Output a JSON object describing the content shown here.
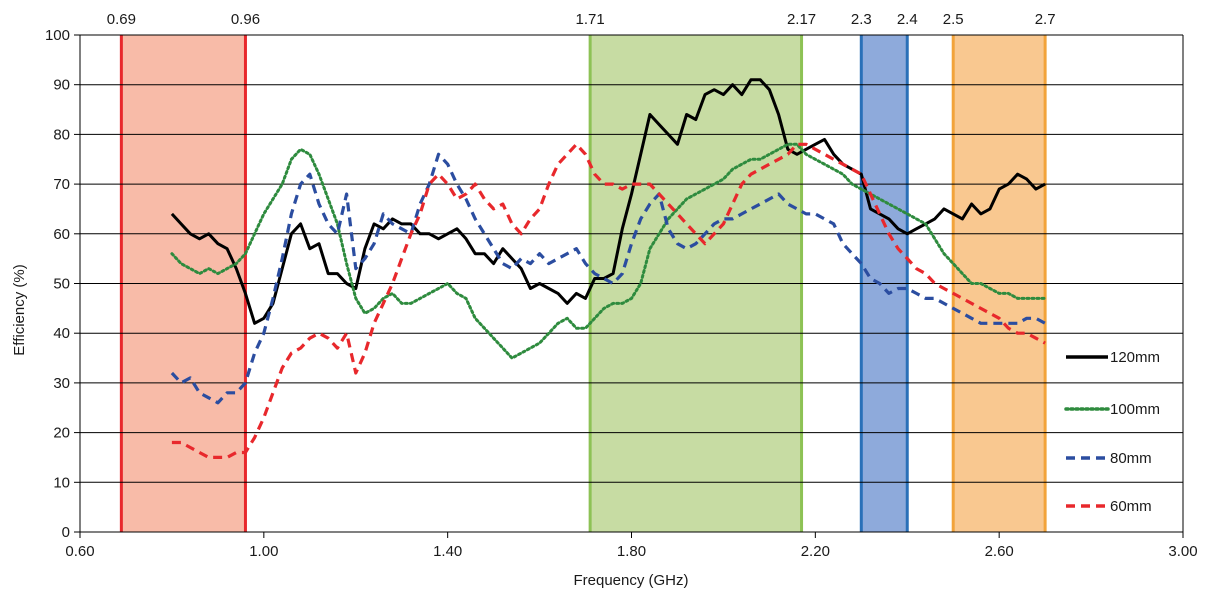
{
  "chart_data": {
    "type": "line",
    "xlabel": "Frequency (GHz)",
    "ylabel": "Efficiency  (%)",
    "xlim": [
      0.6,
      3.0
    ],
    "ylim": [
      0,
      100
    ],
    "x_ticks": [
      "0.60",
      "1.00",
      "1.40",
      "1.80",
      "2.20",
      "2.60",
      "3.00"
    ],
    "y_ticks": [
      "0",
      "10",
      "20",
      "30",
      "40",
      "50",
      "60",
      "70",
      "80",
      "90",
      "100"
    ],
    "grid": "horizontal",
    "legend": "right",
    "bands": [
      {
        "from": 0.69,
        "to": 0.96,
        "from_label": "0.69",
        "to_label": "0.96",
        "fill": "#f8bba8",
        "edge": "#e8282c"
      },
      {
        "from": 1.71,
        "to": 2.17,
        "from_label": "1.71",
        "to_label": "2.17",
        "fill": "#c7dca3",
        "edge": "#8dc255"
      },
      {
        "from": 2.3,
        "to": 2.4,
        "from_label": "2.3",
        "to_label": "2.4",
        "fill": "#8eaadb",
        "edge": "#2a70b8"
      },
      {
        "from": 2.5,
        "to": 2.7,
        "from_label": "2.5",
        "to_label": "2.7",
        "fill": "#f9c890",
        "edge": "#f2a33a"
      }
    ],
    "series": [
      {
        "name": "120mm",
        "color": "#000000",
        "style": "solid",
        "x": [
          0.8,
          0.82,
          0.84,
          0.86,
          0.88,
          0.9,
          0.92,
          0.94,
          0.96,
          0.98,
          1.0,
          1.02,
          1.04,
          1.06,
          1.08,
          1.1,
          1.12,
          1.14,
          1.16,
          1.18,
          1.2,
          1.22,
          1.24,
          1.26,
          1.28,
          1.3,
          1.32,
          1.34,
          1.36,
          1.38,
          1.4,
          1.42,
          1.44,
          1.46,
          1.48,
          1.5,
          1.52,
          1.54,
          1.56,
          1.58,
          1.6,
          1.62,
          1.64,
          1.66,
          1.68,
          1.7,
          1.72,
          1.74,
          1.76,
          1.78,
          1.8,
          1.82,
          1.84,
          1.86,
          1.88,
          1.9,
          1.92,
          1.94,
          1.96,
          1.98,
          2.0,
          2.02,
          2.04,
          2.06,
          2.08,
          2.1,
          2.12,
          2.14,
          2.16,
          2.18,
          2.2,
          2.22,
          2.24,
          2.26,
          2.28,
          2.3,
          2.32,
          2.34,
          2.36,
          2.38,
          2.4,
          2.42,
          2.44,
          2.46,
          2.48,
          2.5,
          2.52,
          2.54,
          2.56,
          2.58,
          2.6,
          2.62,
          2.64,
          2.66,
          2.68,
          2.7
        ],
        "y": [
          64,
          62,
          60,
          59,
          60,
          58,
          57,
          53,
          48,
          42,
          43,
          46,
          53,
          60,
          62,
          57,
          58,
          52,
          52,
          50,
          49,
          57,
          62,
          61,
          63,
          62,
          62,
          60,
          60,
          59,
          60,
          61,
          59,
          56,
          56,
          54,
          57,
          55,
          53,
          49,
          50,
          49,
          48,
          46,
          48,
          47,
          51,
          51,
          52,
          61,
          68,
          76,
          84,
          82,
          80,
          78,
          84,
          83,
          88,
          89,
          88,
          90,
          88,
          91,
          91,
          89,
          84,
          77,
          76,
          77,
          78,
          79,
          76,
          74,
          73,
          72,
          65,
          64,
          63,
          61,
          60,
          61,
          62,
          63,
          65,
          64,
          63,
          66,
          64,
          65,
          69,
          70,
          72,
          71,
          69,
          70
        ]
      },
      {
        "name": "100mm",
        "color": "#2e8b3e",
        "style": "dotted",
        "x": [
          0.8,
          0.82,
          0.84,
          0.86,
          0.88,
          0.9,
          0.92,
          0.94,
          0.96,
          0.98,
          1.0,
          1.02,
          1.04,
          1.06,
          1.08,
          1.1,
          1.12,
          1.14,
          1.16,
          1.18,
          1.2,
          1.22,
          1.24,
          1.26,
          1.28,
          1.3,
          1.32,
          1.34,
          1.36,
          1.38,
          1.4,
          1.42,
          1.44,
          1.46,
          1.48,
          1.5,
          1.52,
          1.54,
          1.56,
          1.58,
          1.6,
          1.62,
          1.64,
          1.66,
          1.68,
          1.7,
          1.72,
          1.74,
          1.76,
          1.78,
          1.8,
          1.82,
          1.84,
          1.86,
          1.88,
          1.9,
          1.92,
          1.94,
          1.96,
          1.98,
          2.0,
          2.02,
          2.04,
          2.06,
          2.08,
          2.1,
          2.12,
          2.14,
          2.16,
          2.18,
          2.2,
          2.22,
          2.24,
          2.26,
          2.28,
          2.3,
          2.32,
          2.34,
          2.36,
          2.38,
          2.4,
          2.42,
          2.44,
          2.46,
          2.48,
          2.5,
          2.52,
          2.54,
          2.56,
          2.58,
          2.6,
          2.62,
          2.64,
          2.66,
          2.68,
          2.7
        ],
        "y": [
          56,
          54,
          53,
          52,
          53,
          52,
          53,
          54,
          56,
          60,
          64,
          67,
          70,
          75,
          77,
          76,
          72,
          67,
          62,
          54,
          47,
          44,
          45,
          47,
          48,
          46,
          46,
          47,
          48,
          49,
          50,
          48,
          47,
          43,
          41,
          39,
          37,
          35,
          36,
          37,
          38,
          40,
          42,
          43,
          41,
          41,
          43,
          45,
          46,
          46,
          47,
          50,
          57,
          60,
          63,
          65,
          67,
          68,
          69,
          70,
          71,
          73,
          74,
          75,
          75,
          76,
          77,
          78,
          78,
          76,
          75,
          74,
          73,
          72,
          70,
          69,
          68,
          67,
          66,
          65,
          64,
          63,
          62,
          59,
          56,
          54,
          52,
          50,
          50,
          49,
          48,
          48,
          47,
          47,
          47,
          47
        ]
      },
      {
        "name": "80mm",
        "color": "#2b4da0",
        "style": "dashed",
        "x": [
          0.8,
          0.82,
          0.84,
          0.86,
          0.88,
          0.9,
          0.92,
          0.94,
          0.96,
          0.98,
          1.0,
          1.02,
          1.04,
          1.06,
          1.08,
          1.1,
          1.12,
          1.14,
          1.16,
          1.18,
          1.2,
          1.22,
          1.24,
          1.26,
          1.28,
          1.3,
          1.32,
          1.34,
          1.36,
          1.38,
          1.4,
          1.42,
          1.44,
          1.46,
          1.48,
          1.5,
          1.52,
          1.54,
          1.56,
          1.58,
          1.6,
          1.62,
          1.64,
          1.66,
          1.68,
          1.7,
          1.72,
          1.74,
          1.76,
          1.78,
          1.8,
          1.82,
          1.84,
          1.86,
          1.88,
          1.9,
          1.92,
          1.94,
          1.96,
          1.98,
          2.0,
          2.02,
          2.04,
          2.06,
          2.08,
          2.1,
          2.12,
          2.14,
          2.16,
          2.18,
          2.2,
          2.22,
          2.24,
          2.26,
          2.28,
          2.3,
          2.32,
          2.34,
          2.36,
          2.38,
          2.4,
          2.42,
          2.44,
          2.46,
          2.48,
          2.5,
          2.52,
          2.54,
          2.56,
          2.58,
          2.6,
          2.62,
          2.64,
          2.66,
          2.68,
          2.7
        ],
        "y": [
          32,
          30,
          31,
          28,
          27,
          26,
          28,
          28,
          30,
          36,
          40,
          47,
          55,
          64,
          70,
          72,
          66,
          62,
          60,
          68,
          53,
          55,
          58,
          64,
          62,
          61,
          60,
          66,
          70,
          76,
          74,
          70,
          67,
          63,
          60,
          57,
          54,
          53,
          55,
          54,
          56,
          54,
          55,
          56,
          57,
          54,
          52,
          51,
          50,
          52,
          58,
          63,
          66,
          68,
          61,
          58,
          57,
          58,
          60,
          62,
          63,
          63,
          64,
          65,
          66,
          67,
          68,
          66,
          65,
          64,
          64,
          63,
          62,
          58,
          56,
          54,
          51,
          50,
          48,
          49,
          49,
          48,
          47,
          47,
          46,
          45,
          44,
          43,
          42,
          42,
          42,
          42,
          42,
          43,
          43,
          42
        ]
      },
      {
        "name": "60mm",
        "color": "#e8282c",
        "style": "dashed",
        "x": [
          0.8,
          0.82,
          0.84,
          0.86,
          0.88,
          0.9,
          0.92,
          0.94,
          0.96,
          0.98,
          1.0,
          1.02,
          1.04,
          1.06,
          1.08,
          1.1,
          1.12,
          1.14,
          1.16,
          1.18,
          1.2,
          1.22,
          1.24,
          1.26,
          1.28,
          1.3,
          1.32,
          1.34,
          1.36,
          1.38,
          1.4,
          1.42,
          1.44,
          1.46,
          1.48,
          1.5,
          1.52,
          1.54,
          1.56,
          1.58,
          1.6,
          1.62,
          1.64,
          1.66,
          1.68,
          1.7,
          1.72,
          1.74,
          1.76,
          1.78,
          1.8,
          1.82,
          1.84,
          1.86,
          1.88,
          1.9,
          1.92,
          1.94,
          1.96,
          1.98,
          2.0,
          2.02,
          2.04,
          2.06,
          2.08,
          2.1,
          2.12,
          2.14,
          2.16,
          2.18,
          2.2,
          2.22,
          2.24,
          2.26,
          2.28,
          2.3,
          2.32,
          2.34,
          2.36,
          2.38,
          2.4,
          2.42,
          2.44,
          2.46,
          2.48,
          2.5,
          2.52,
          2.54,
          2.56,
          2.58,
          2.6,
          2.62,
          2.64,
          2.66,
          2.68,
          2.7
        ],
        "y": [
          18,
          18,
          17,
          16,
          15,
          15,
          15,
          16,
          16,
          19,
          23,
          28,
          33,
          36,
          37,
          39,
          40,
          39,
          37,
          40,
          32,
          36,
          42,
          46,
          50,
          55,
          60,
          64,
          70,
          72,
          70,
          67,
          68,
          70,
          67,
          65,
          66,
          62,
          60,
          63,
          65,
          70,
          74,
          76,
          78,
          76,
          72,
          70,
          70,
          69,
          70,
          70,
          70,
          68,
          66,
          64,
          62,
          60,
          58,
          60,
          62,
          66,
          70,
          72,
          73,
          74,
          75,
          76,
          78,
          78,
          77,
          76,
          75,
          74,
          73,
          72,
          68,
          64,
          60,
          57,
          55,
          53,
          52,
          50,
          49,
          48,
          47,
          46,
          45,
          44,
          43,
          41,
          40,
          40,
          39,
          38
        ]
      }
    ]
  }
}
